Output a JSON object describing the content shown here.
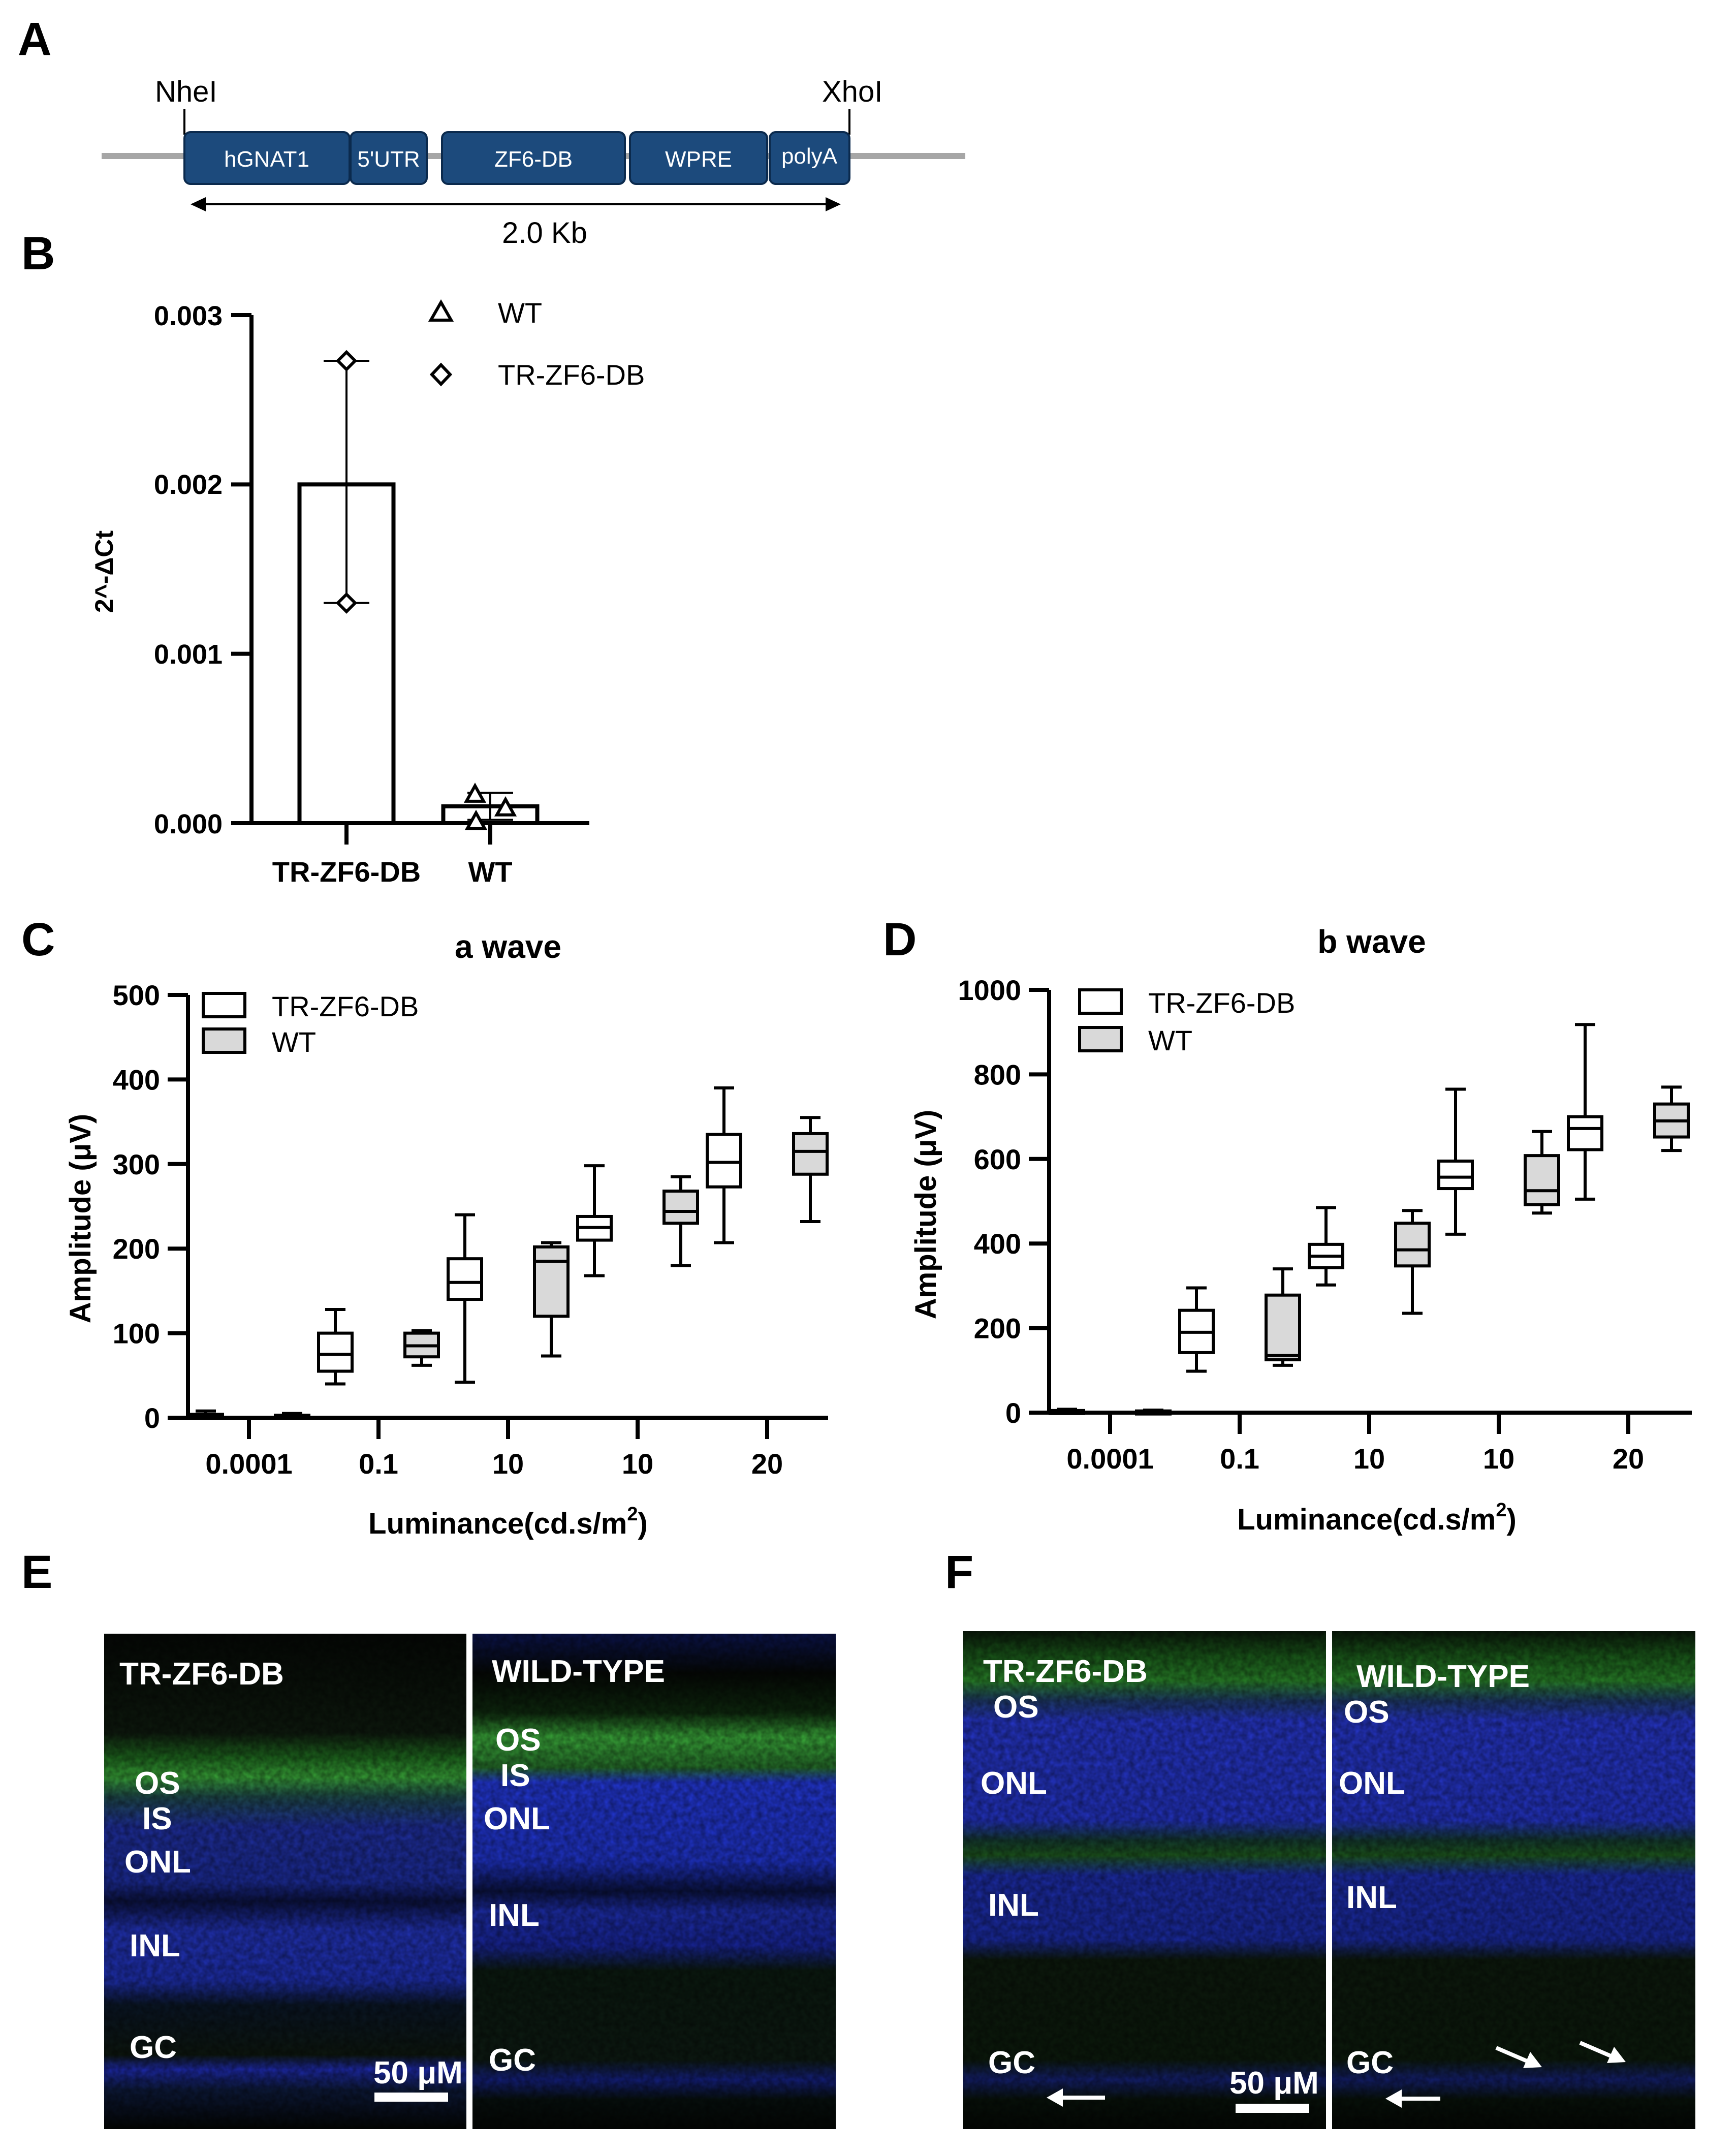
{
  "panels": {
    "A": "A",
    "B": "B",
    "C": "C",
    "D": "D",
    "E": "E",
    "F": "F"
  },
  "construct": {
    "left_site": "NheI",
    "right_site": "XhoI",
    "elements": [
      "hGNAT1",
      "5'UTR",
      "ZF6-DB",
      "WPRE",
      "polyA"
    ],
    "length_label": "2.0 Kb",
    "element_color": "#1c4a7c",
    "line_color": "#a6a6a6"
  },
  "chart_data": [
    {
      "id": "B",
      "type": "bar",
      "title": "",
      "ylabel": "2^-ΔCt",
      "xlabel": "",
      "categories": [
        "TR-ZF6-DB",
        "WT"
      ],
      "values": [
        0.002,
        0.0001
      ],
      "error_low": [
        0.0013,
        2e-05
      ],
      "error_high": [
        0.00273,
        0.00018
      ],
      "points": {
        "TR-ZF6-DB": [
          0.00273,
          0.0013
        ],
        "WT": [
          0.00017,
          9e-05,
          1e-05
        ]
      },
      "ylim": [
        0,
        0.003
      ],
      "yticks": [
        "0.000",
        "0.001",
        "0.002",
        "0.003"
      ],
      "yticks_values": [
        0,
        0.001,
        0.002,
        0.003
      ],
      "legend": [
        {
          "name": "WT",
          "marker": "triangle"
        },
        {
          "name": "TR-ZF6-DB",
          "marker": "diamond"
        }
      ]
    },
    {
      "id": "C",
      "type": "box",
      "title": "a wave",
      "ylabel": "Amplitude (μV)",
      "xlabel": "Luminance(cd.s/m²)",
      "categories": [
        "0.0001",
        "0.1",
        "10",
        "10",
        "20"
      ],
      "ylim": [
        0,
        500
      ],
      "yticks": [
        0,
        100,
        200,
        300,
        400,
        500
      ],
      "legend": [
        "TR-ZF6-DB",
        "WT"
      ],
      "series": [
        {
          "name": "TR-ZF6-DB",
          "color": "#ffffff",
          "boxes": [
            {
              "min": 0,
              "q1": 1,
              "median": 2,
              "q3": 4,
              "max": 8
            },
            {
              "min": 40,
              "q1": 55,
              "median": 75,
              "q3": 100,
              "max": 128
            },
            {
              "min": 42,
              "q1": 140,
              "median": 160,
              "q3": 188,
              "max": 240
            },
            {
              "min": 168,
              "q1": 210,
              "median": 225,
              "q3": 238,
              "max": 298
            },
            {
              "min": 207,
              "q1": 273,
              "median": 302,
              "q3": 335,
              "max": 390
            }
          ]
        },
        {
          "name": "WT",
          "color": "#d9d9d9",
          "boxes": [
            {
              "min": 0,
              "q1": 1,
              "median": 2,
              "q3": 3,
              "max": 5
            },
            {
              "min": 62,
              "q1": 72,
              "median": 85,
              "q3": 100,
              "max": 103
            },
            {
              "min": 73,
              "q1": 120,
              "median": 185,
              "q3": 202,
              "max": 207
            },
            {
              "min": 180,
              "q1": 230,
              "median": 244,
              "q3": 268,
              "max": 285
            },
            {
              "min": 232,
              "q1": 288,
              "median": 315,
              "q3": 336,
              "max": 355
            }
          ]
        }
      ]
    },
    {
      "id": "D",
      "type": "box",
      "title": "b wave",
      "ylabel": "Amplitude (μV)",
      "xlabel": "Luminance(cd.s/m²)",
      "categories": [
        "0.0001",
        "0.1",
        "10",
        "10",
        "20"
      ],
      "ylim": [
        0,
        1000
      ],
      "yticks": [
        0,
        200,
        400,
        600,
        800,
        1000
      ],
      "legend": [
        "TR-ZF6-DB",
        "WT"
      ],
      "series": [
        {
          "name": "TR-ZF6-DB",
          "color": "#ffffff",
          "boxes": [
            {
              "min": 0,
              "q1": 1,
              "median": 3,
              "q3": 5,
              "max": 8
            },
            {
              "min": 98,
              "q1": 142,
              "median": 190,
              "q3": 242,
              "max": 295
            },
            {
              "min": 302,
              "q1": 343,
              "median": 370,
              "q3": 398,
              "max": 485
            },
            {
              "min": 422,
              "q1": 530,
              "median": 557,
              "q3": 595,
              "max": 765
            },
            {
              "min": 505,
              "q1": 622,
              "median": 672,
              "q3": 700,
              "max": 918
            }
          ]
        },
        {
          "name": "WT",
          "color": "#d9d9d9",
          "boxes": [
            {
              "min": 0,
              "q1": 1,
              "median": 2,
              "q3": 4,
              "max": 6
            },
            {
              "min": 112,
              "q1": 125,
              "median": 135,
              "q3": 278,
              "max": 340
            },
            {
              "min": 235,
              "q1": 347,
              "median": 385,
              "q3": 448,
              "max": 478
            },
            {
              "min": 472,
              "q1": 492,
              "median": 525,
              "q3": 608,
              "max": 665
            },
            {
              "min": 620,
              "q1": 652,
              "median": 690,
              "q3": 730,
              "max": 770
            }
          ]
        }
      ]
    }
  ],
  "micrographs": {
    "E": {
      "left": {
        "title": "TR-ZF6-DB",
        "labels": [
          "OS",
          "IS",
          "ONL",
          "INL",
          "GC"
        ],
        "scale": "50 μM"
      },
      "right": {
        "title": "WILD-TYPE",
        "labels": [
          "OS",
          "IS",
          "ONL",
          "INL",
          "GC"
        ]
      }
    },
    "F": {
      "left": {
        "title": "TR-ZF6-DB",
        "labels": [
          "OS",
          "ONL",
          "INL",
          "GC"
        ],
        "scale": "50 μM"
      },
      "right": {
        "title": "WILD-TYPE",
        "labels": [
          "OS",
          "ONL",
          "INL",
          "GC"
        ]
      }
    }
  }
}
